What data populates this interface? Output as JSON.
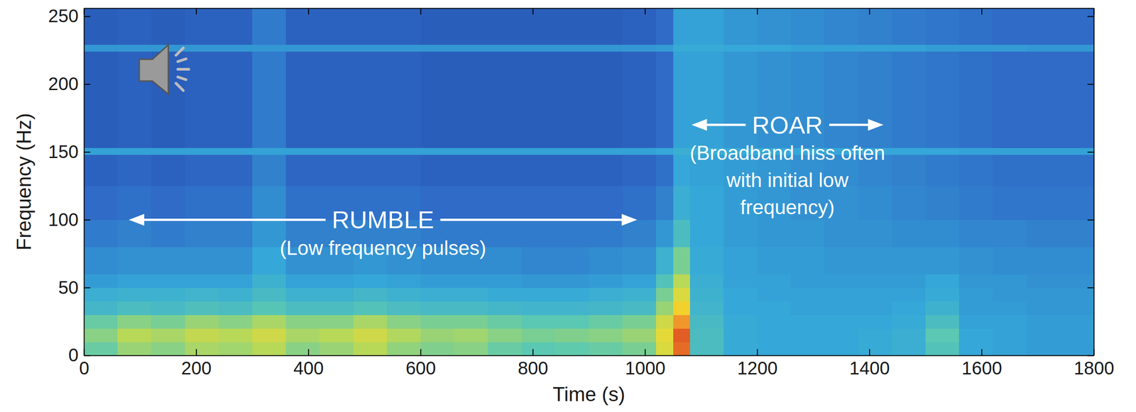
{
  "chart_data": {
    "type": "heatmap",
    "x_label": "Time (s)",
    "y_label": "Frequency (Hz)",
    "xlim": [
      0,
      1800
    ],
    "ylim": [
      0,
      256
    ],
    "xticks": [
      0,
      200,
      400,
      600,
      800,
      1000,
      1200,
      1400,
      1600,
      1800
    ],
    "yticks": [
      0,
      50,
      100,
      150,
      200,
      250
    ],
    "zlim": [
      0,
      10
    ],
    "x_edges": [
      0,
      60,
      120,
      180,
      240,
      300,
      360,
      420,
      480,
      540,
      600,
      660,
      720,
      780,
      840,
      900,
      960,
      1020,
      1050,
      1080,
      1140,
      1200,
      1260,
      1320,
      1380,
      1440,
      1500,
      1560,
      1620,
      1680,
      1740,
      1800
    ],
    "y_edges": [
      0,
      10,
      20,
      30,
      40,
      50,
      60,
      80,
      100,
      125,
      148,
      153,
      190,
      224,
      229,
      256
    ],
    "cells": [
      [
        4.6,
        5.2,
        5.0,
        5.4,
        5.3,
        5.6,
        5.0,
        5.2,
        5.6,
        5.1,
        4.9,
        5.0,
        4.6,
        4.4,
        4.5,
        4.6,
        4.8,
        6.2,
        8.2,
        4.0,
        3.4,
        3.3,
        3.3,
        3.3,
        3.4,
        3.5,
        4.2,
        3.3,
        3.2,
        3.1,
        3.1
      ],
      [
        5.0,
        5.6,
        5.4,
        5.8,
        5.6,
        6.0,
        5.4,
        5.6,
        6.0,
        5.5,
        5.2,
        5.3,
        5.0,
        4.8,
        4.9,
        5.0,
        5.2,
        6.4,
        8.4,
        4.0,
        3.4,
        3.3,
        3.3,
        3.3,
        3.4,
        3.5,
        4.4,
        3.3,
        3.2,
        3.1,
        3.1
      ],
      [
        4.6,
        5.0,
        4.8,
        5.2,
        5.0,
        5.4,
        5.0,
        5.0,
        5.4,
        5.0,
        4.8,
        4.8,
        4.6,
        4.4,
        4.4,
        4.6,
        4.8,
        6.0,
        7.6,
        3.9,
        3.4,
        3.3,
        3.3,
        3.3,
        3.3,
        3.4,
        4.0,
        3.2,
        3.2,
        3.1,
        3.1
      ],
      [
        3.8,
        4.0,
        3.9,
        4.1,
        4.0,
        4.3,
        4.0,
        4.0,
        4.2,
        4.0,
        3.9,
        3.9,
        3.8,
        3.7,
        3.7,
        3.8,
        3.9,
        5.2,
        6.8,
        3.7,
        3.3,
        3.3,
        3.2,
        3.2,
        3.2,
        3.3,
        3.6,
        3.1,
        3.1,
        3.0,
        3.0
      ],
      [
        3.5,
        3.6,
        3.6,
        3.7,
        3.6,
        3.9,
        3.6,
        3.6,
        3.8,
        3.6,
        3.5,
        3.5,
        3.4,
        3.4,
        3.4,
        3.5,
        3.6,
        4.8,
        6.2,
        3.6,
        3.3,
        3.2,
        3.2,
        3.2,
        3.2,
        3.2,
        3.4,
        3.1,
        3.0,
        3.0,
        3.0
      ],
      [
        3.1,
        3.2,
        3.2,
        3.2,
        3.2,
        3.6,
        3.2,
        3.2,
        3.3,
        3.2,
        3.1,
        3.1,
        3.1,
        3.0,
        3.0,
        3.1,
        3.2,
        4.2,
        5.6,
        3.5,
        3.2,
        3.2,
        3.1,
        3.1,
        3.1,
        3.1,
        3.3,
        3.0,
        3.0,
        2.9,
        2.9
      ],
      [
        2.8,
        2.9,
        2.9,
        2.9,
        2.9,
        3.3,
        2.9,
        2.9,
        3.0,
        2.9,
        2.8,
        2.8,
        2.8,
        2.7,
        2.7,
        2.8,
        2.9,
        3.6,
        4.8,
        3.4,
        3.2,
        3.1,
        3.1,
        3.0,
        3.0,
        3.0,
        3.0,
        2.9,
        2.8,
        2.8,
        2.8
      ],
      [
        2.5,
        2.6,
        2.5,
        2.6,
        2.6,
        3.0,
        2.6,
        2.6,
        2.6,
        2.6,
        2.5,
        2.5,
        2.5,
        2.5,
        2.5,
        2.5,
        2.6,
        3.0,
        4.0,
        3.3,
        3.1,
        3.0,
        3.0,
        2.9,
        2.9,
        2.8,
        2.8,
        2.7,
        2.7,
        2.6,
        2.6
      ],
      [
        2.2,
        2.3,
        2.2,
        2.3,
        2.3,
        2.8,
        2.3,
        2.3,
        2.3,
        2.3,
        2.2,
        2.2,
        2.2,
        2.2,
        2.2,
        2.2,
        2.3,
        2.6,
        3.5,
        3.3,
        3.1,
        3.0,
        2.9,
        2.9,
        2.8,
        2.7,
        2.6,
        2.5,
        2.4,
        2.4,
        2.4
      ],
      [
        2.0,
        2.1,
        2.0,
        2.1,
        2.1,
        2.6,
        2.1,
        2.1,
        2.1,
        2.1,
        2.0,
        2.0,
        2.0,
        2.0,
        2.0,
        2.0,
        2.1,
        2.3,
        3.3,
        3.2,
        3.1,
        3.0,
        2.9,
        2.8,
        2.7,
        2.6,
        2.5,
        2.4,
        2.3,
        2.3,
        2.3
      ],
      [
        3.2,
        3.2,
        3.2,
        3.2,
        3.2,
        3.2,
        3.2,
        3.2,
        3.2,
        3.2,
        3.2,
        3.2,
        3.2,
        3.2,
        3.2,
        3.2,
        3.2,
        3.3,
        3.5,
        3.5,
        3.4,
        3.4,
        3.3,
        3.3,
        3.3,
        3.3,
        3.3,
        3.2,
        3.2,
        3.2,
        3.2
      ],
      [
        1.9,
        2.0,
        1.9,
        2.0,
        2.0,
        2.5,
        2.0,
        2.0,
        2.0,
        2.0,
        1.9,
        1.9,
        1.9,
        1.9,
        1.9,
        1.9,
        2.0,
        2.2,
        3.2,
        3.2,
        3.0,
        2.9,
        2.8,
        2.7,
        2.6,
        2.5,
        2.4,
        2.3,
        2.2,
        2.2,
        2.2
      ],
      [
        1.9,
        2.0,
        1.9,
        2.0,
        2.0,
        2.5,
        2.0,
        2.0,
        2.0,
        2.0,
        1.9,
        1.9,
        1.9,
        1.9,
        1.9,
        1.9,
        2.0,
        2.2,
        3.2,
        3.2,
        3.0,
        2.9,
        2.8,
        2.7,
        2.6,
        2.5,
        2.4,
        2.3,
        2.2,
        2.2,
        2.2
      ],
      [
        3.0,
        3.0,
        3.0,
        3.0,
        3.0,
        3.0,
        3.0,
        3.0,
        3.0,
        3.0,
        3.0,
        3.0,
        3.0,
        3.0,
        3.0,
        3.0,
        3.0,
        3.1,
        3.4,
        3.4,
        3.3,
        3.3,
        3.2,
        3.2,
        3.2,
        3.2,
        3.1,
        3.1,
        3.1,
        3.0,
        3.0
      ],
      [
        1.9,
        2.0,
        1.9,
        2.0,
        2.0,
        2.5,
        2.0,
        2.0,
        2.0,
        2.0,
        1.9,
        1.9,
        1.9,
        1.9,
        1.9,
        1.9,
        2.0,
        2.2,
        3.2,
        3.2,
        3.0,
        2.9,
        2.8,
        2.7,
        2.6,
        2.5,
        2.4,
        2.3,
        2.2,
        2.2,
        2.2
      ]
    ],
    "annotations": [
      {
        "text": "RUMBLE",
        "note": [
          "(Low frequency pulses)"
        ],
        "x_span": [
          80,
          986
        ],
        "y": 100
      },
      {
        "text": "ROAR",
        "note": [
          "(Broadband hiss often",
          "with initial low",
          "frequency)"
        ],
        "x_span": [
          1083,
          1425
        ],
        "y": 170
      }
    ]
  }
}
